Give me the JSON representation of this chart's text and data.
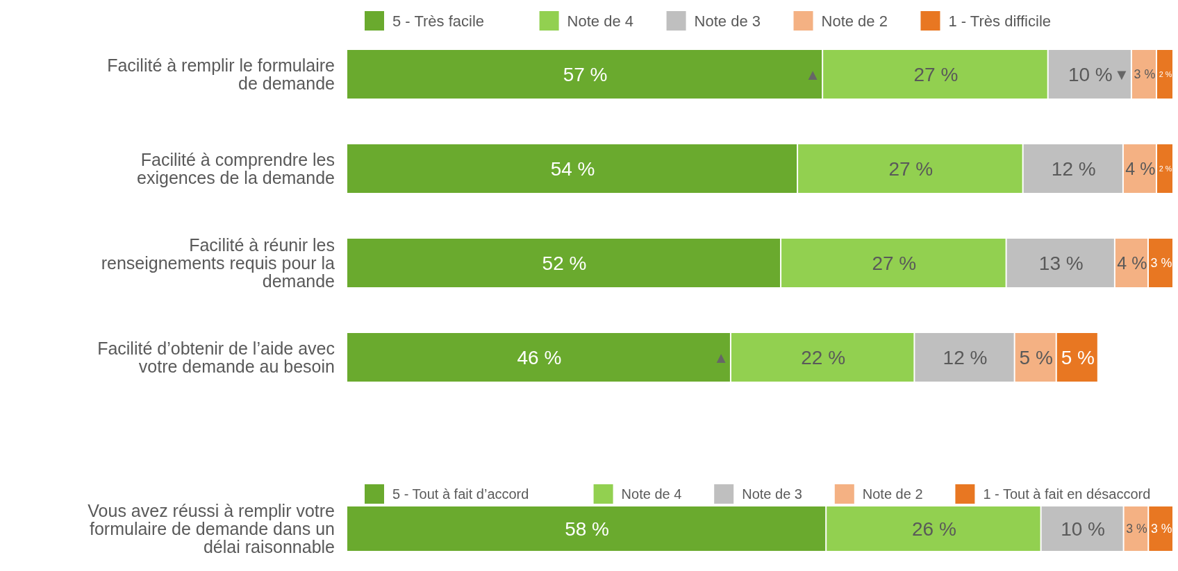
{
  "chart_data": [
    {
      "type": "bar",
      "orientation": "horizontal",
      "stacked": true,
      "legend": "top",
      "categories": [
        "Facilité à remplir le formulaire de demande",
        "Facilité à comprendre les exigences de la demande",
        "Facilité à réunir les renseignements requis pour la demande",
        "Facilité d’obtenir de l’aide avec votre demande au besoin"
      ],
      "series": [
        {
          "name": "5 - Très facile",
          "color": "#6aaa2e",
          "values": [
            57,
            54,
            52,
            46
          ],
          "value_labels": [
            "57 %",
            "54 %",
            "52 %",
            "46 %"
          ]
        },
        {
          "name": "Note de 4",
          "color": "#92d050",
          "values": [
            27,
            27,
            27,
            22
          ],
          "value_labels": [
            "27 %",
            "27 %",
            "27 %",
            "22 %"
          ]
        },
        {
          "name": "Note de 3",
          "color": "#bfbfbf",
          "values": [
            10,
            12,
            13,
            12
          ],
          "value_labels": [
            "10 %",
            "12 %",
            "13 %",
            "12 %"
          ]
        },
        {
          "name": "Note de 2",
          "color": "#f4b183",
          "values": [
            3,
            4,
            4,
            5
          ],
          "value_labels": [
            "3 %",
            "4 %",
            "4 %",
            "5 %"
          ]
        },
        {
          "name": "1 - Très difficile",
          "color": "#e87722",
          "values": [
            2,
            2,
            3,
            5
          ],
          "value_labels": [
            "2 %",
            "2 %",
            "3 %",
            "5 %"
          ]
        }
      ],
      "annotations": [
        {
          "text": "▲",
          "x": 57,
          "y": "Facilité à remplir le formulaire de demande"
        },
        {
          "text": "▼",
          "x": 94,
          "y": "Facilité à remplir le formulaire de demande"
        },
        {
          "text": "▲",
          "x": 46,
          "y": "Facilité d’obtenir de l’aide avec votre demande au besoin"
        }
      ]
    },
    {
      "type": "bar",
      "orientation": "horizontal",
      "stacked": true,
      "legend": "top",
      "categories": [
        "Vous avez réussi à remplir votre formulaire de demande dans un délai raisonnable"
      ],
      "series": [
        {
          "name": "5 - Tout à fait d’accord",
          "color": "#6aaa2e",
          "values": [
            58
          ],
          "value_labels": [
            "58 %"
          ]
        },
        {
          "name": "Note de 4",
          "color": "#92d050",
          "values": [
            26
          ],
          "value_labels": [
            "26 %"
          ]
        },
        {
          "name": "Note de 3",
          "color": "#bfbfbf",
          "values": [
            10
          ],
          "value_labels": [
            "10 %"
          ]
        },
        {
          "name": "Note de 2",
          "color": "#f4b183",
          "values": [
            3
          ],
          "value_labels": [
            "3 %"
          ]
        },
        {
          "name": "1 - Tout à fait en désaccord",
          "color": "#e87722",
          "values": [
            3
          ],
          "value_labels": [
            "3 %"
          ]
        }
      ]
    }
  ]
}
